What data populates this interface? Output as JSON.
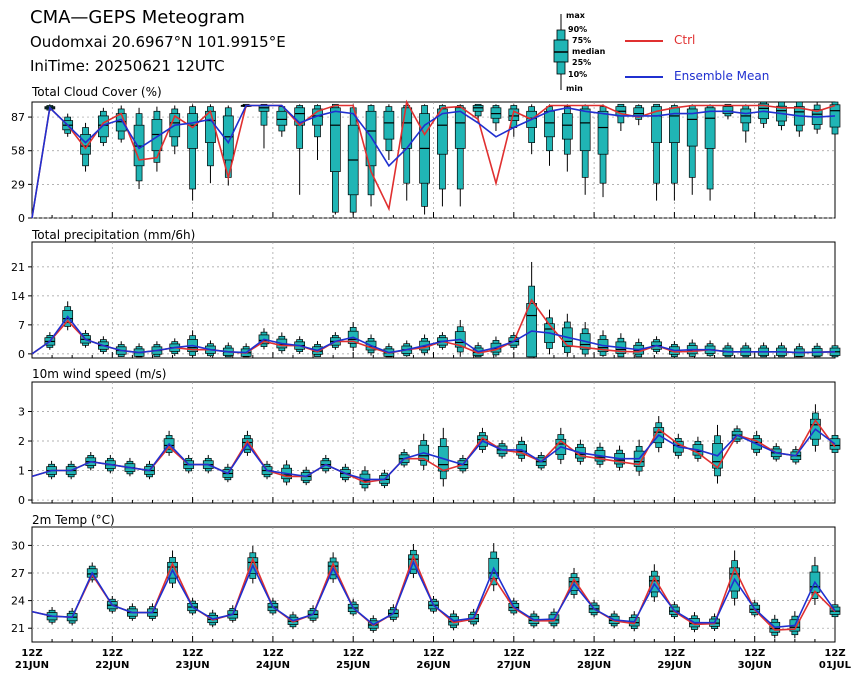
{
  "header": {
    "title": "CMA—GEPS Meteogram",
    "location": "Oudomxai 20.6967°N 101.9915°E",
    "init_time": "IniTime: 20250621 12UTC"
  },
  "legend": {
    "box_labels": [
      "max",
      "90%",
      "75%",
      "median",
      "25%",
      "10%",
      "min"
    ],
    "ctrl_label": "Ctrl",
    "mean_label": "Ensemble Mean"
  },
  "colors": {
    "ctrl": "#e03030",
    "mean": "#2030d0",
    "box": "#20b5b5",
    "grid": "#9a9a9a"
  },
  "x_ticks": [
    [
      "12Z",
      "21JUN"
    ],
    [
      "12Z",
      "22JUN"
    ],
    [
      "12Z",
      "23JUN"
    ],
    [
      "12Z",
      "24JUN"
    ],
    [
      "12Z",
      "25JUN"
    ],
    [
      "12Z",
      "26JUN"
    ],
    [
      "12Z",
      "27JUN"
    ],
    [
      "12Z",
      "28JUN"
    ],
    [
      "12Z",
      "29JUN"
    ],
    [
      "12Z",
      "30JUN"
    ],
    [
      "12Z",
      "01JUL"
    ]
  ],
  "chart_data": [
    {
      "type": "box",
      "title": "Total Cloud Cover (%)",
      "x_step_hours": 6,
      "ylim": [
        0,
        100
      ],
      "yticks": [
        0,
        29,
        58,
        87
      ],
      "grid": true,
      "ctrl": [
        0,
        95,
        80,
        60,
        82,
        90,
        50,
        52,
        88,
        78,
        92,
        35,
        97,
        97,
        97,
        80,
        92,
        97,
        97,
        40,
        8,
        100,
        72,
        95,
        96,
        85,
        30,
        92,
        85,
        97,
        97,
        97,
        97,
        90,
        87,
        92,
        95,
        97,
        97,
        97,
        97,
        97,
        95,
        95,
        92,
        97
      ],
      "mean": [
        0,
        95,
        80,
        65,
        80,
        85,
        60,
        70,
        80,
        82,
        85,
        65,
        97,
        97,
        97,
        82,
        88,
        92,
        90,
        70,
        45,
        60,
        80,
        90,
        92,
        82,
        70,
        78,
        85,
        92,
        95,
        92,
        90,
        88,
        88,
        88,
        90,
        90,
        92,
        92,
        90,
        92,
        90,
        88,
        87,
        88
      ],
      "boxes": [
        null,
        [
          92,
          93,
          94,
          95,
          96,
          97,
          98
        ],
        [
          70,
          73,
          76,
          80,
          84,
          87,
          90
        ],
        [
          40,
          45,
          55,
          62,
          72,
          78,
          82
        ],
        [
          62,
          65,
          70,
          80,
          88,
          92,
          95
        ],
        [
          65,
          68,
          75,
          83,
          90,
          94,
          97
        ],
        [
          25,
          32,
          45,
          62,
          80,
          90,
          95
        ],
        [
          40,
          48,
          58,
          72,
          85,
          92,
          96
        ],
        [
          55,
          62,
          70,
          82,
          90,
          94,
          97
        ],
        [
          15,
          25,
          60,
          80,
          90,
          96,
          98
        ],
        [
          30,
          45,
          65,
          84,
          92,
          96,
          98
        ],
        [
          28,
          35,
          50,
          70,
          88,
          95,
          97
        ],
        [
          95,
          96,
          97,
          97,
          97,
          98,
          98
        ],
        [
          60,
          80,
          92,
          95,
          97,
          98,
          98
        ],
        [
          70,
          75,
          80,
          85,
          92,
          96,
          97
        ],
        [
          20,
          60,
          80,
          90,
          95,
          97,
          98
        ],
        [
          50,
          70,
          80,
          88,
          94,
          97,
          98
        ],
        [
          3,
          5,
          40,
          80,
          95,
          98,
          98
        ],
        [
          3,
          5,
          20,
          50,
          80,
          95,
          98
        ],
        [
          10,
          20,
          45,
          75,
          92,
          97,
          98
        ],
        [
          50,
          58,
          68,
          82,
          92,
          96,
          98
        ],
        [
          15,
          30,
          60,
          82,
          95,
          97,
          98
        ],
        [
          3,
          10,
          30,
          60,
          90,
          97,
          98
        ],
        [
          10,
          25,
          55,
          80,
          94,
          97,
          98
        ],
        [
          10,
          25,
          60,
          82,
          95,
          97,
          98
        ],
        [
          82,
          88,
          92,
          95,
          97,
          98,
          98
        ],
        [
          75,
          82,
          86,
          90,
          95,
          97,
          98
        ],
        [
          70,
          78,
          84,
          88,
          94,
          97,
          98
        ],
        [
          55,
          65,
          78,
          86,
          92,
          96,
          98
        ],
        [
          45,
          58,
          70,
          82,
          92,
          96,
          98
        ],
        [
          40,
          55,
          68,
          80,
          90,
          96,
          98
        ],
        [
          20,
          35,
          58,
          82,
          94,
          97,
          98
        ],
        [
          18,
          30,
          55,
          78,
          92,
          96,
          98
        ],
        [
          75,
          82,
          88,
          92,
          96,
          98,
          98
        ],
        [
          80,
          85,
          88,
          90,
          95,
          97,
          98
        ],
        [
          15,
          30,
          65,
          88,
          96,
          98,
          98
        ],
        [
          15,
          30,
          65,
          88,
          95,
          97,
          98
        ],
        [
          20,
          35,
          62,
          85,
          94,
          97,
          98
        ],
        [
          15,
          25,
          60,
          86,
          95,
          97,
          98
        ],
        [
          85,
          88,
          90,
          92,
          96,
          98,
          98
        ],
        [
          65,
          75,
          82,
          88,
          94,
          97,
          98
        ]
      ]
    },
    {
      "type": "box",
      "title": "Total precipitation (mm/6h)",
      "x_step_hours": 6,
      "ylim": [
        -1,
        27
      ],
      "yticks": [
        0,
        7,
        14,
        21
      ],
      "grid": true,
      "ctrl": [
        0,
        3,
        8,
        3.5,
        2,
        0.8,
        0.3,
        0.8,
        1.5,
        1,
        1,
        0.5,
        0.2,
        3,
        2,
        2,
        0.5,
        3,
        3,
        1.5,
        0.2,
        1,
        1.5,
        3,
        2,
        0.2,
        1,
        3,
        13,
        7,
        2,
        1.5,
        1,
        0.6,
        0.5,
        2,
        0.5,
        0.6,
        1,
        0.5,
        0.5,
        0.5,
        0.5,
        0.3,
        0.4,
        0.5
      ],
      "mean": [
        0,
        3,
        9,
        3.5,
        2,
        0.8,
        0.3,
        0.8,
        1.5,
        2,
        1,
        0.5,
        0.3,
        3.5,
        2.5,
        2,
        0.8,
        3,
        4,
        2,
        0.3,
        1,
        2,
        3,
        3.5,
        0.5,
        1.5,
        3,
        5.5,
        5,
        4,
        3,
        2,
        1.5,
        1,
        2,
        0.8,
        1,
        1,
        0.5,
        0.5,
        0.5,
        0.5,
        0.3,
        0.4,
        0.5
      ]
    },
    {
      "type": "box",
      "title": "10m wind speed (m/s)",
      "x_step_hours": 6,
      "ylim": [
        -0.1,
        4
      ],
      "yticks": [
        0,
        1,
        2,
        3
      ],
      "grid": true,
      "ctrl": [
        0.8,
        1.0,
        1.0,
        1.3,
        1.2,
        1.1,
        1.0,
        1.8,
        1.2,
        1.2,
        0.9,
        2.0,
        1.0,
        0.8,
        0.8,
        1.2,
        0.9,
        0.6,
        0.7,
        1.4,
        1.4,
        1.0,
        1.2,
        2.1,
        1.7,
        1.6,
        1.3,
        2.0,
        1.5,
        1.4,
        1.3,
        1.2,
        2.4,
        1.9,
        1.6,
        1.1,
        2.2,
        2.0,
        1.6,
        1.5,
        2.7,
        1.8
      ],
      "mean": [
        0.8,
        1.0,
        1.0,
        1.3,
        1.2,
        1.1,
        1.0,
        1.9,
        1.2,
        1.2,
        0.9,
        1.9,
        1.0,
        0.9,
        0.8,
        1.2,
        0.9,
        0.7,
        0.7,
        1.4,
        1.6,
        1.4,
        1.2,
        2.0,
        1.7,
        1.7,
        1.3,
        1.8,
        1.6,
        1.5,
        1.4,
        1.4,
        2.2,
        1.8,
        1.7,
        1.5,
        2.2,
        1.9,
        1.6,
        1.5,
        2.4,
        1.9
      ]
    },
    {
      "type": "box",
      "title": "2m Temp (°C)",
      "x_step_hours": 6,
      "ylim": [
        19.5,
        32
      ],
      "yticks": [
        21,
        24,
        27,
        30
      ],
      "grid": true,
      "ctrl": [
        22.8,
        22.3,
        22.2,
        26.8,
        23.5,
        22.7,
        22.7,
        28.0,
        23.3,
        21.9,
        22.5,
        28.5,
        23.3,
        21.7,
        22.5,
        28.0,
        23.2,
        21.3,
        22.6,
        28.8,
        23.5,
        21.6,
        22.0,
        26.5,
        23.2,
        21.8,
        21.8,
        26.3,
        23.1,
        21.8,
        21.5,
        26.5,
        22.8,
        21.4,
        21.5,
        27.5,
        23.0,
        20.8,
        20.9,
        25.0,
        22.8
      ],
      "mean": [
        22.8,
        22.3,
        22.2,
        27.0,
        23.5,
        22.7,
        22.7,
        27.3,
        23.3,
        22.0,
        22.5,
        27.8,
        23.3,
        21.8,
        22.5,
        27.5,
        23.2,
        21.4,
        22.6,
        28.2,
        23.5,
        21.8,
        22.1,
        27.5,
        23.3,
        21.9,
        22.0,
        25.8,
        23.1,
        21.9,
        21.7,
        25.8,
        22.9,
        21.6,
        21.6,
        26.3,
        23.1,
        21.1,
        21.3,
        26.0,
        22.9
      ]
    }
  ],
  "panel_titles": [
    "Total Cloud Cover (%)",
    "Total precipitation (mm/6h)",
    "10m wind speed (m/s)",
    "2m Temp (°C)"
  ]
}
